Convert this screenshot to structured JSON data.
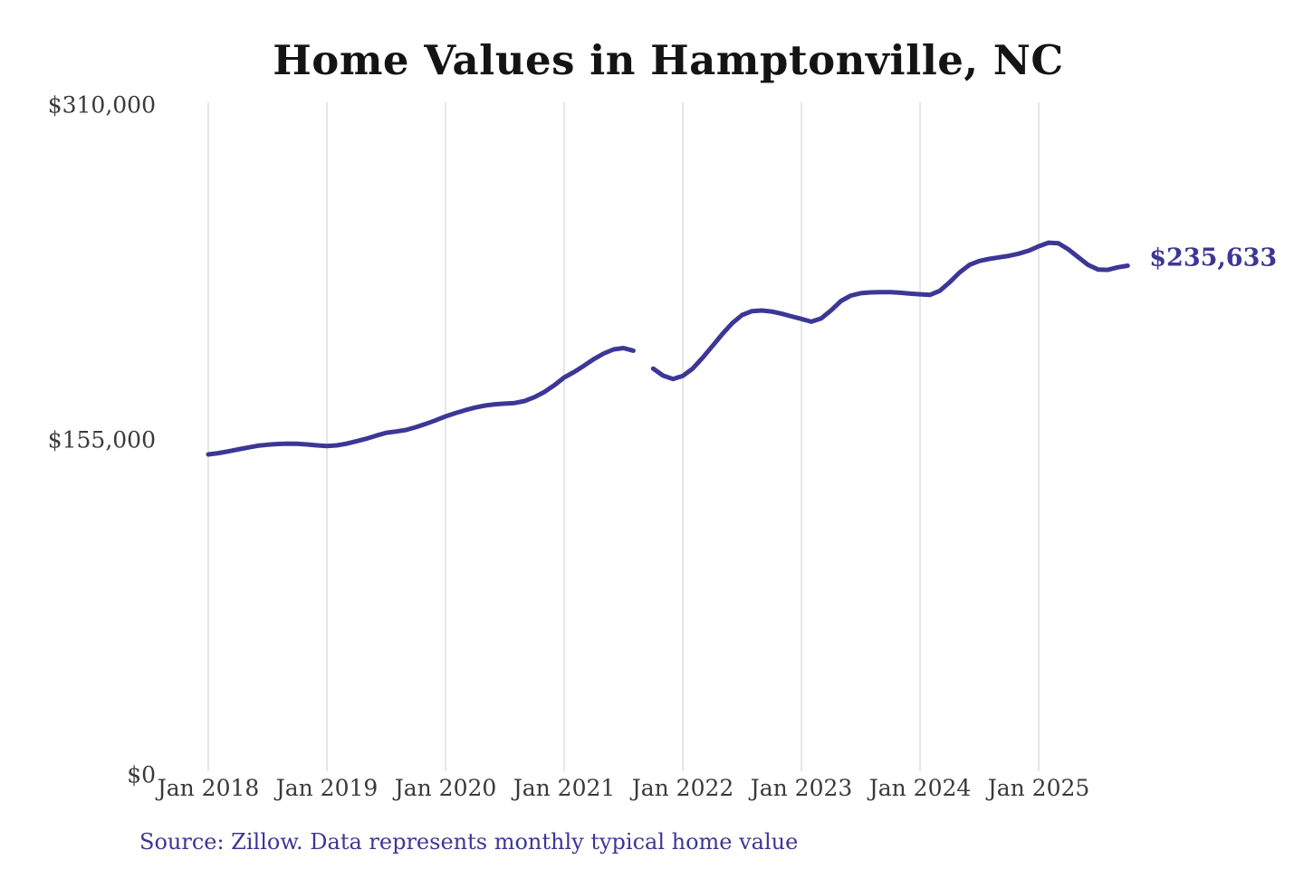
{
  "page": {
    "source_note": "Source: Zillow. Data represents monthly typical home value"
  },
  "colors": {
    "line": "#3c3796",
    "grid": "#cccccc",
    "axis_text": "#3a3a3a",
    "title_text": "#141414",
    "end_label_text": "#3c3796",
    "background": "#ffffff"
  },
  "chart_data": {
    "type": "line",
    "title": "Home Values in Hamptonville, NC",
    "xlabel": "",
    "ylabel": "",
    "x_tick_labels": [
      "Jan 2018",
      "Jan 2019",
      "Jan 2020",
      "Jan 2021",
      "Jan 2022",
      "Jan 2023",
      "Jan 2024",
      "Jan 2025"
    ],
    "x_tick_month_indices": [
      0,
      12,
      24,
      36,
      48,
      60,
      72,
      84
    ],
    "y_tick_labels": [
      "$310,000",
      "$155,000",
      "$0"
    ],
    "y_tick_values": [
      310000,
      155000,
      0
    ],
    "ylim": [
      0,
      310000
    ],
    "grid": "vertical-only",
    "legend": "none",
    "end_label": "$235,633",
    "series": [
      {
        "name": "Monthly typical home value",
        "first_point_label": "Jan 2018",
        "values": [
          148300,
          148900,
          149700,
          150600,
          151500,
          152300,
          152800,
          153100,
          153300,
          153200,
          152900,
          152500,
          152200,
          152500,
          153300,
          154400,
          155600,
          157000,
          158300,
          158900,
          159600,
          160900,
          162400,
          164100,
          165900,
          167400,
          168800,
          170000,
          170900,
          171500,
          171800,
          172100,
          173000,
          174800,
          177200,
          180300,
          183900,
          186400,
          189300,
          192400,
          195000,
          196900,
          197500,
          196300,
          null,
          188000,
          184800,
          183200,
          184600,
          188000,
          193000,
          198500,
          204000,
          209000,
          212800,
          214600,
          214900,
          214400,
          213400,
          212200,
          211000,
          209700,
          211200,
          215000,
          219300,
          221800,
          222900,
          223300,
          223400,
          223400,
          223100,
          222700,
          222400,
          222100,
          224000,
          228000,
          232500,
          236000,
          237800,
          238800,
          239500,
          240200,
          241200,
          242600,
          244600,
          246300,
          246000,
          243200,
          239600,
          236000,
          233900,
          233700,
          234900,
          235633
        ]
      }
    ]
  }
}
